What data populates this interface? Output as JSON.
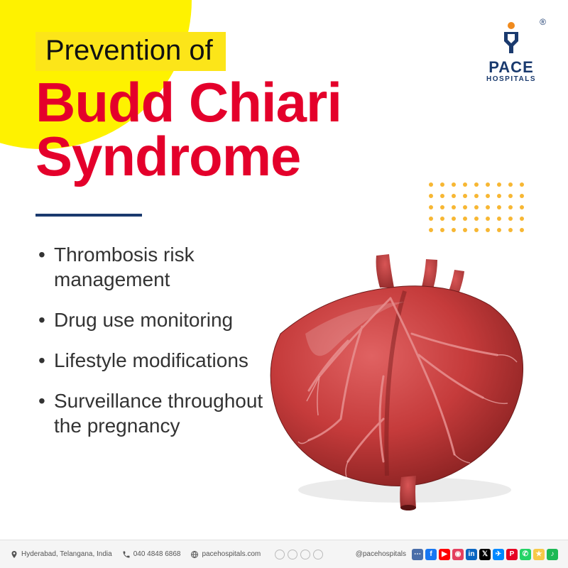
{
  "header": {
    "pretitle": "Prevention of",
    "title_line1": "Budd Chiari",
    "title_line2": "Syndrome",
    "title_color": "#e4002b",
    "pretitle_bg": "#fce519",
    "circle_color": "#fef200"
  },
  "logo": {
    "brand": "PACE",
    "sub": "HOSPITALS",
    "reg": "®",
    "color": "#1a3a6e",
    "accent": "#f08a1d"
  },
  "dots": {
    "rows": 5,
    "cols": 9,
    "color": "#f7b733"
  },
  "divider_color": "#1a3a6e",
  "bullets": [
    "Thrombosis risk management",
    "Drug use monitoring",
    "Lifestyle modifications",
    "Surveillance throughout the pregnancy"
  ],
  "bullet_fontsize": 28,
  "bullet_color": "#333333",
  "organ": {
    "body_color": "#c53b3b",
    "shadow_color": "#8a2222",
    "vessel_color": "#e67a7a",
    "top_vessel_color": "#9b3030"
  },
  "footer": {
    "location": "Hyderabad, Telangana, India",
    "phone": "040 4848 6868",
    "website": "pacehospitals.com",
    "handle": "@pacehospitals",
    "bg": "#f5f5f5",
    "badge_count": 4,
    "social": [
      {
        "bg": "#4a6ea9",
        "glyph": "⋯"
      },
      {
        "bg": "#1877f2",
        "glyph": "f"
      },
      {
        "bg": "#ff0000",
        "glyph": "▶"
      },
      {
        "bg": "#e4405f",
        "glyph": "◉"
      },
      {
        "bg": "#0a66c2",
        "glyph": "in"
      },
      {
        "bg": "#000000",
        "glyph": "𝕏"
      },
      {
        "bg": "#0088ff",
        "glyph": "✈"
      },
      {
        "bg": "#e60023",
        "glyph": "P"
      },
      {
        "bg": "#25d366",
        "glyph": "✆"
      },
      {
        "bg": "#f7c948",
        "glyph": "★"
      },
      {
        "bg": "#1db954",
        "glyph": "♪"
      }
    ]
  }
}
